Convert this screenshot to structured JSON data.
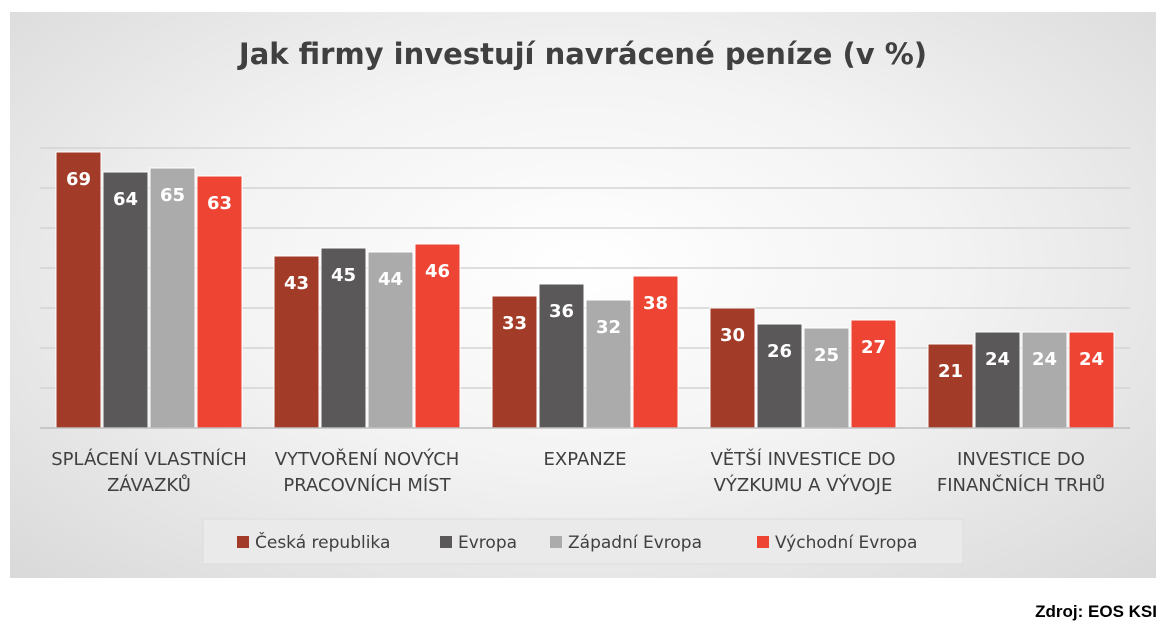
{
  "chart_data": {
    "type": "bar",
    "title": "Jak firmy investují navrácené peníze (v %)",
    "categories": [
      [
        "SPLÁCENÍ VLASTNÍCH",
        "ZÁVAZKŮ"
      ],
      [
        "VYTVOŘENÍ NOVÝCH",
        "PRACOVNÍCH MÍST"
      ],
      [
        "EXPANZE"
      ],
      [
        "VĚTŠÍ INVESTICE DO",
        "VÝZKUMU A VÝVOJE"
      ],
      [
        "INVESTICE DO",
        "FINANČNÍCH TRHŮ"
      ]
    ],
    "series": [
      {
        "name": "Česká republika",
        "color": "#A23C28",
        "values": [
          69,
          43,
          33,
          30,
          21
        ]
      },
      {
        "name": "Evropa",
        "color": "#5A5858",
        "values": [
          64,
          45,
          36,
          26,
          24
        ]
      },
      {
        "name": "Západní Evropa",
        "color": "#ABABAB",
        "values": [
          65,
          44,
          32,
          25,
          24
        ]
      },
      {
        "name": "Východní Evropa",
        "color": "#EE4433",
        "values": [
          63,
          46,
          38,
          27,
          24
        ]
      }
    ],
    "ylim": [
      0,
      70
    ],
    "grid": true,
    "legend_position": "bottom",
    "data_labels": true
  },
  "source_note": "Zdroj: EOS KSI"
}
